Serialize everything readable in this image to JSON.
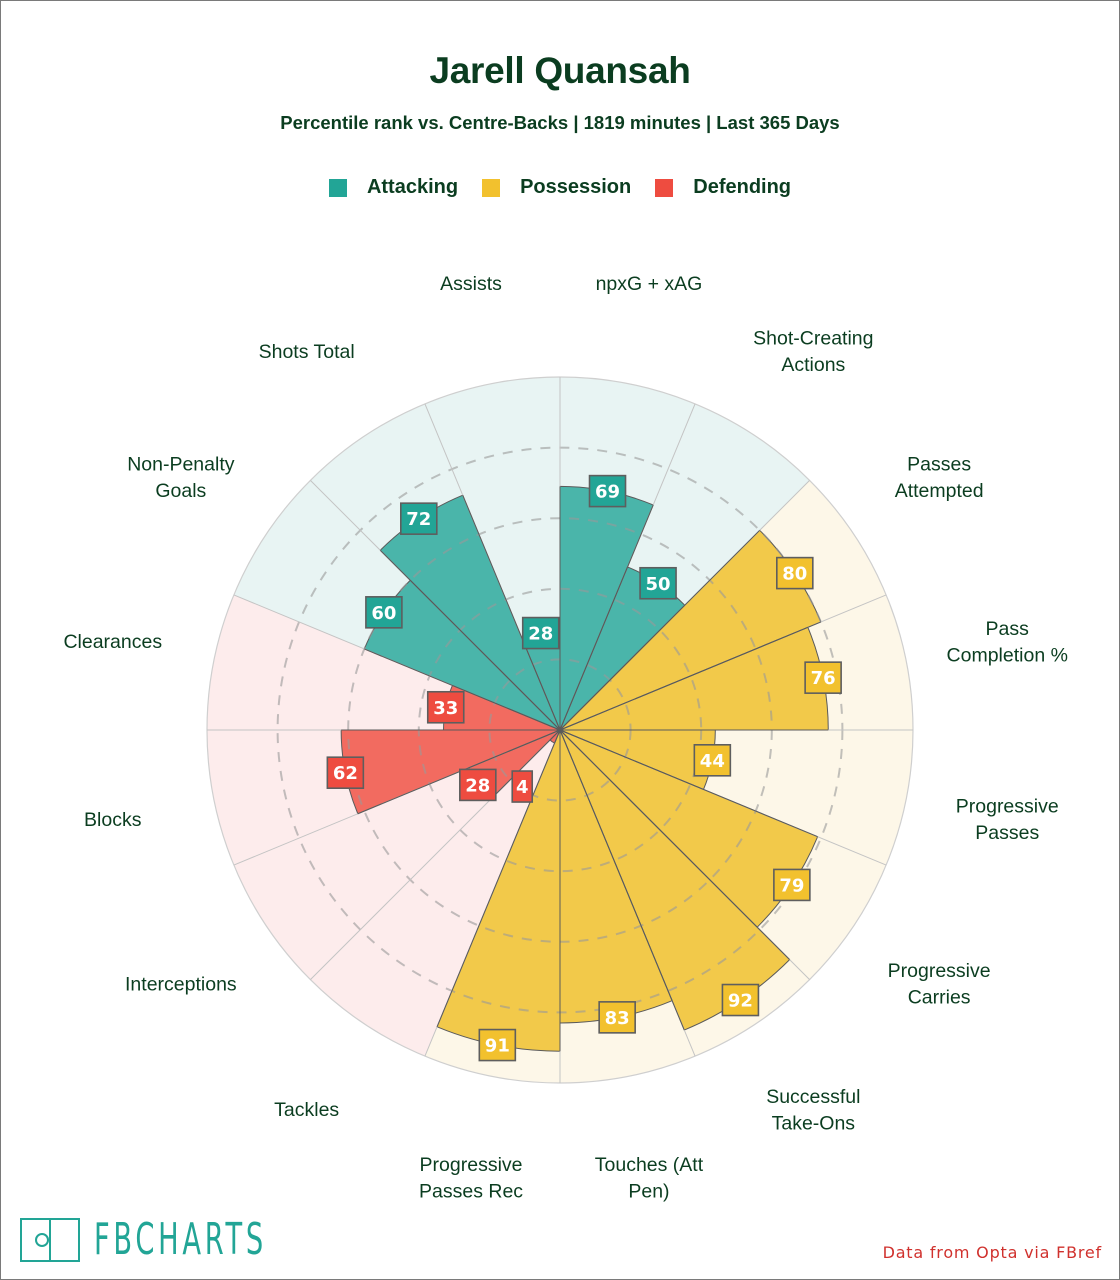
{
  "header": {
    "title": "Jarell Quansah",
    "subtitle": "Percentile rank vs. Centre-Backs | 1819 minutes | Last 365 Days"
  },
  "legend": [
    {
      "label": "Attacking",
      "color": "#22a596"
    },
    {
      "label": "Possession",
      "color": "#f2c12e"
    },
    {
      "label": "Defending",
      "color": "#ee4c40"
    }
  ],
  "footer": {
    "logo_text": "FBCHARTS",
    "source": "Data from Opta via FBref"
  },
  "colors": {
    "attacking": {
      "bar": "#4ab5aa",
      "bg": "#e8f4f3",
      "box": "#22a596"
    },
    "possession": {
      "bar": "#f2c94a",
      "bg": "#fdf7e8",
      "box": "#f2c12e"
    },
    "defending": {
      "bar": "#f26b60",
      "bg": "#fdecec",
      "box": "#ee4c40"
    },
    "text": "#0b3d20"
  },
  "chart_data": {
    "type": "polar-bar",
    "title": "Jarell Quansah",
    "subtitle": "Percentile rank vs. Centre-Backs | 1819 minutes | Last 365 Days",
    "rlim": [
      0,
      100
    ],
    "rings": [
      20,
      40,
      60,
      80
    ],
    "grid": true,
    "legend_placement": "top",
    "direction": "clockwise-from-top",
    "categories": [
      {
        "label": "npxG + xAG",
        "lines": [
          "npxG + xAG"
        ],
        "value": 69,
        "group": "attacking"
      },
      {
        "label": "Shot-Creating Actions",
        "lines": [
          "Shot-Creating",
          "Actions"
        ],
        "value": 50,
        "group": "attacking"
      },
      {
        "label": "Passes Attempted",
        "lines": [
          "Passes",
          "Attempted"
        ],
        "value": 80,
        "group": "possession"
      },
      {
        "label": "Pass Completion %",
        "lines": [
          "Pass",
          "Completion %"
        ],
        "value": 76,
        "group": "possession"
      },
      {
        "label": "Progressive Passes",
        "lines": [
          "Progressive",
          "Passes"
        ],
        "value": 44,
        "group": "possession"
      },
      {
        "label": "Progressive Carries",
        "lines": [
          "Progressive",
          "Carries"
        ],
        "value": 79,
        "group": "possession"
      },
      {
        "label": "Successful Take-Ons",
        "lines": [
          "Successful",
          "Take-Ons"
        ],
        "value": 92,
        "group": "possession"
      },
      {
        "label": "Touches (Att Pen)",
        "lines": [
          "Touches (Att",
          "Pen)"
        ],
        "value": 83,
        "group": "possession"
      },
      {
        "label": "Progressive Passes Rec",
        "lines": [
          "Progressive",
          "Passes Rec"
        ],
        "value": 91,
        "group": "possession"
      },
      {
        "label": "Tackles",
        "lines": [
          "Tackles"
        ],
        "value": 4,
        "group": "defending"
      },
      {
        "label": "Interceptions",
        "lines": [
          "Interceptions"
        ],
        "value": 28,
        "group": "defending"
      },
      {
        "label": "Blocks",
        "lines": [
          "Blocks"
        ],
        "value": 62,
        "group": "defending"
      },
      {
        "label": "Clearances",
        "lines": [
          "Clearances"
        ],
        "value": 33,
        "group": "defending"
      },
      {
        "label": "Non-Penalty Goals",
        "lines": [
          "Non-Penalty",
          "Goals"
        ],
        "value": 60,
        "group": "attacking"
      },
      {
        "label": "Shots Total",
        "lines": [
          "Shots Total"
        ],
        "value": 72,
        "group": "attacking"
      },
      {
        "label": "Assists",
        "lines": [
          "Assists"
        ],
        "value": 28,
        "group": "attacking"
      }
    ]
  }
}
